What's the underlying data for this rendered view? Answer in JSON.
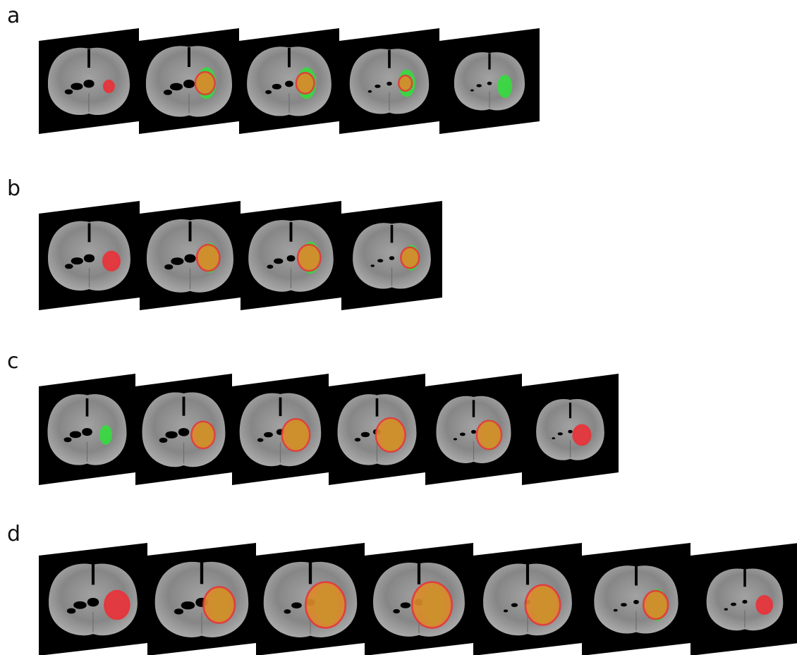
{
  "rows": [
    {
      "label": "a",
      "slices": [
        {
          "scale": 0.95,
          "red": 0.15,
          "green": 0.0,
          "lesion_x": 0.7,
          "lesion_y": 0.55,
          "ventricles": "large"
        },
        {
          "scale": 1.0,
          "red": 0.45,
          "green": 0.35,
          "lesion_x": 0.66,
          "lesion_y": 0.52,
          "ventricles": "large"
        },
        {
          "scale": 0.98,
          "red": 0.4,
          "green": 0.35,
          "lesion_x": 0.66,
          "lesion_y": 0.52,
          "ventricles": "medium"
        },
        {
          "scale": 0.92,
          "red": 0.25,
          "green": 0.25,
          "lesion_x": 0.66,
          "lesion_y": 0.52,
          "ventricles": "small"
        },
        {
          "scale": 0.82,
          "red": 0.0,
          "green": 0.15,
          "lesion_x": 0.64,
          "lesion_y": 0.55,
          "ventricles": "small"
        }
      ]
    },
    {
      "label": "b",
      "slices": [
        {
          "scale": 0.95,
          "red": 0.35,
          "green": 0.0,
          "lesion_x": 0.72,
          "lesion_y": 0.55,
          "ventricles": "large"
        },
        {
          "scale": 1.0,
          "red": 0.55,
          "green": 0.3,
          "lesion_x": 0.68,
          "lesion_y": 0.52,
          "ventricles": "large"
        },
        {
          "scale": 0.98,
          "red": 0.55,
          "green": 0.35,
          "lesion_x": 0.68,
          "lesion_y": 0.52,
          "ventricles": "medium"
        },
        {
          "scale": 0.9,
          "red": 0.4,
          "green": 0.2,
          "lesion_x": 0.68,
          "lesion_y": 0.52,
          "ventricles": "small"
        }
      ]
    },
    {
      "label": "c",
      "slices": [
        {
          "scale": 0.95,
          "red": 0.0,
          "green": 0.08,
          "lesion_x": 0.68,
          "lesion_y": 0.55,
          "ventricles": "large"
        },
        {
          "scale": 1.0,
          "red": 0.6,
          "green": 0.25,
          "lesion_x": 0.7,
          "lesion_y": 0.55,
          "ventricles": "large"
        },
        {
          "scale": 0.98,
          "red": 0.75,
          "green": 0.4,
          "lesion_x": 0.66,
          "lesion_y": 0.55,
          "ventricles": "medium"
        },
        {
          "scale": 0.95,
          "red": 0.8,
          "green": 0.4,
          "lesion_x": 0.64,
          "lesion_y": 0.55,
          "ventricles": "medium"
        },
        {
          "scale": 0.9,
          "red": 0.65,
          "green": 0.35,
          "lesion_x": 0.66,
          "lesion_y": 0.55,
          "ventricles": "small"
        },
        {
          "scale": 0.82,
          "red": 0.4,
          "green": 0.0,
          "lesion_x": 0.62,
          "lesion_y": 0.55,
          "ventricles": "small"
        }
      ]
    },
    {
      "label": "d",
      "slices": [
        {
          "scale": 0.95,
          "red": 0.55,
          "green": 0.0,
          "lesion_x": 0.72,
          "lesion_y": 0.55,
          "ventricles": "large"
        },
        {
          "scale": 1.0,
          "red": 0.75,
          "green": 0.35,
          "lesion_x": 0.66,
          "lesion_y": 0.55,
          "ventricles": "large"
        },
        {
          "scale": 1.0,
          "red": 1.0,
          "green": 0.45,
          "lesion_x": 0.64,
          "lesion_y": 0.55,
          "ventricles": "medium"
        },
        {
          "scale": 0.98,
          "red": 1.0,
          "green": 0.45,
          "lesion_x": 0.62,
          "lesion_y": 0.55,
          "ventricles": "medium"
        },
        {
          "scale": 0.95,
          "red": 0.85,
          "green": 0.4,
          "lesion_x": 0.64,
          "lesion_y": 0.55,
          "ventricles": "small"
        },
        {
          "scale": 0.9,
          "red": 0.55,
          "green": 0.3,
          "lesion_x": 0.68,
          "lesion_y": 0.55,
          "ventricles": "small"
        },
        {
          "scale": 0.82,
          "red": 0.28,
          "green": 0.0,
          "lesion_x": 0.68,
          "lesion_y": 0.55,
          "ventricles": "small"
        }
      ]
    }
  ],
  "colors": {
    "background": "#ffffff",
    "slice_background": "#000000",
    "tissue_dark": "#6a6a6a",
    "tissue_light": "#b8b8b8",
    "lesion_red": "#e8333a",
    "lesion_orange": "#d98a2a",
    "edema_green": "#2fe03a"
  }
}
